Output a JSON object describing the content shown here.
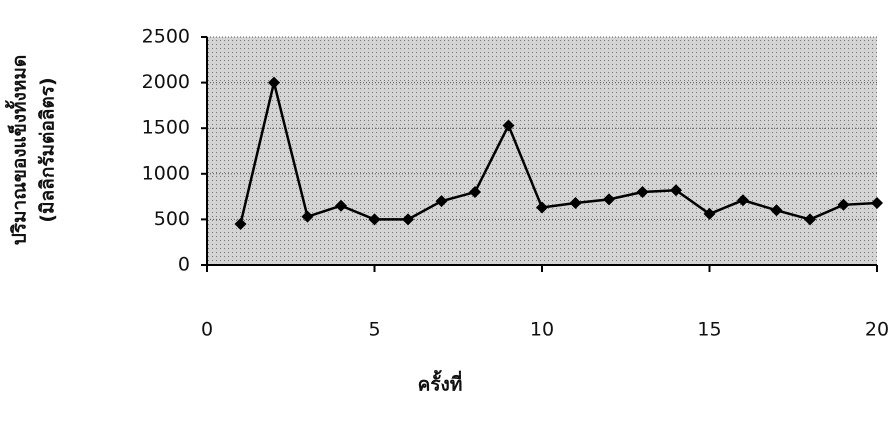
{
  "chart_data": {
    "type": "line",
    "x": [
      1,
      2,
      3,
      4,
      5,
      6,
      7,
      8,
      9,
      10,
      11,
      12,
      13,
      14,
      15,
      16,
      17,
      18,
      19,
      20
    ],
    "series": [
      {
        "color": "#000000",
        "values": [
          450,
          2000,
          530,
          650,
          500,
          500,
          700,
          800,
          1530,
          630,
          680,
          720,
          800,
          820,
          560,
          710,
          600,
          500,
          660,
          680
        ]
      }
    ],
    "xlim": [
      0,
      20
    ],
    "xticks": [
      0,
      5,
      10,
      15,
      20
    ],
    "ylim": [
      0,
      2500
    ],
    "yticks": [
      0,
      500,
      1000,
      1500,
      2000,
      2500
    ],
    "xlabel": "ครั้งที่",
    "ylabel": [
      "ปริมาณของแข็งทั้งหมด",
      "(มิลลิกรัมต่อลิตร)"
    ],
    "grid": true
  }
}
